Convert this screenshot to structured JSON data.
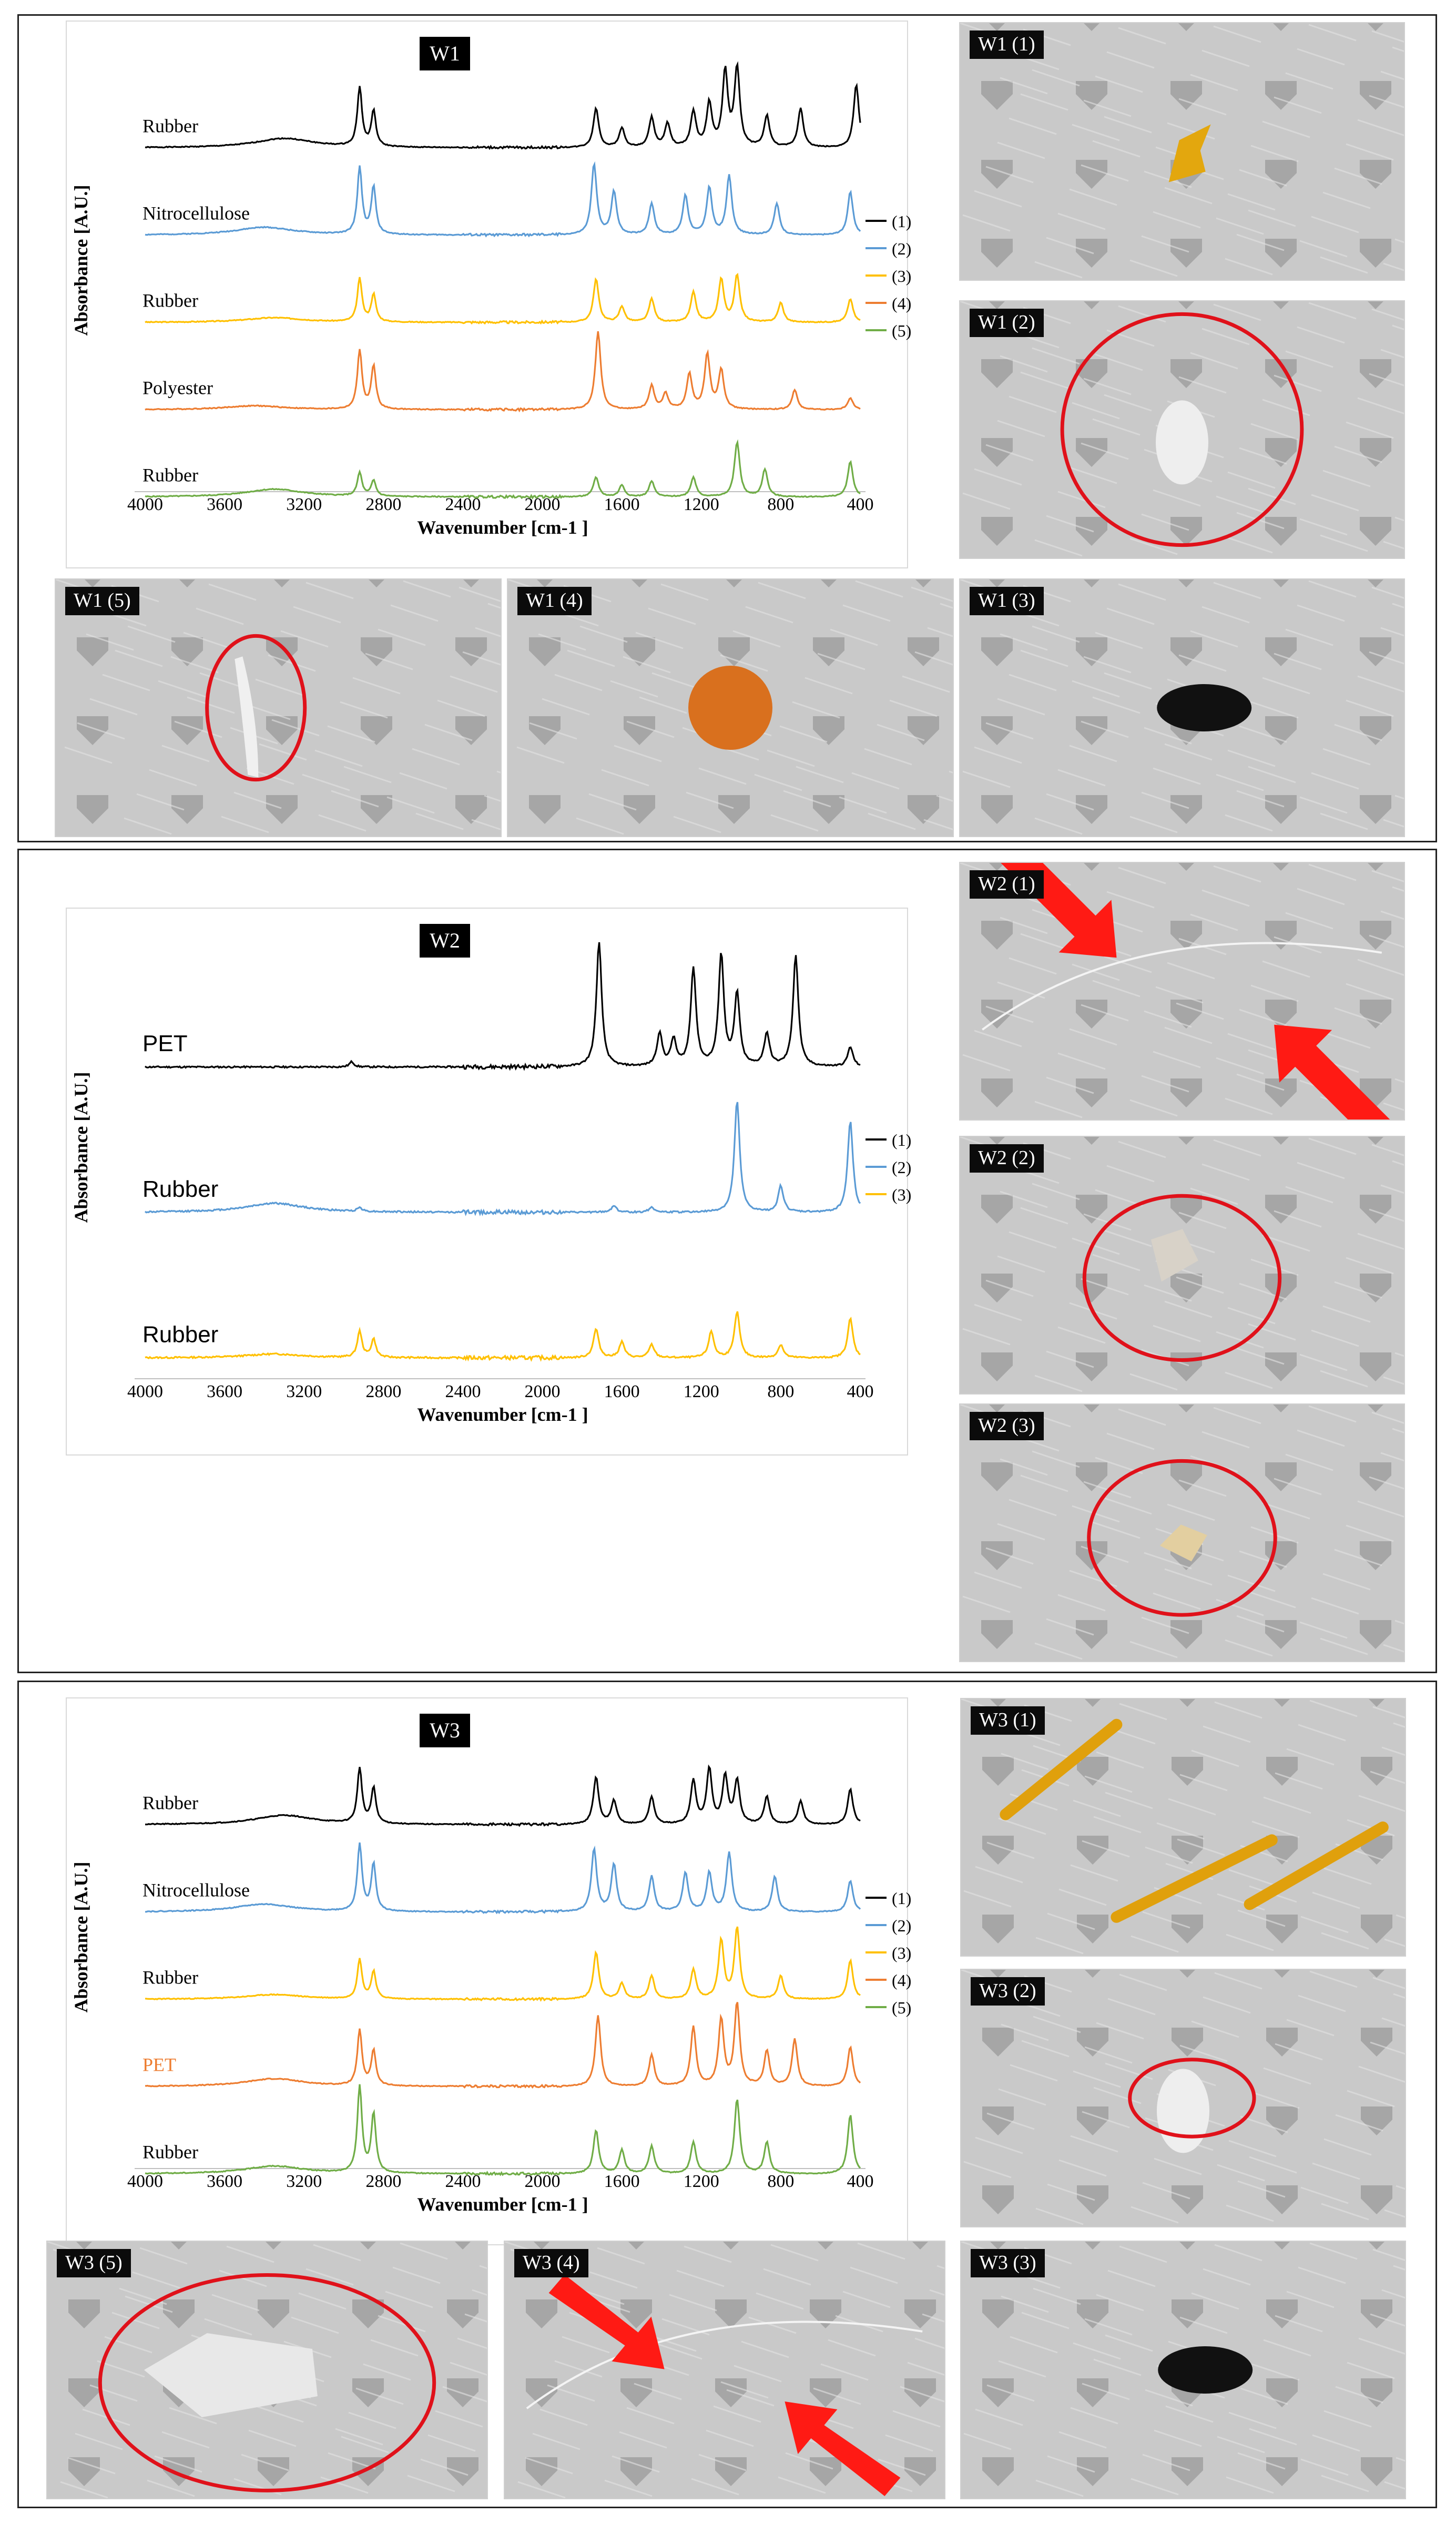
{
  "colors": {
    "s1": "#000000",
    "s2": "#5b9bd5",
    "s3": "#ffc000",
    "s4": "#ed7d31",
    "s5": "#70ad47",
    "annotation_circle": "#e0111a",
    "arrow": "#ff1a14"
  },
  "axis_common": {
    "xlabel": "Wavenumber [cm-1 ]",
    "ylabel": "Absorbance [A.U.]",
    "x_ticks": [
      "4000",
      "3600",
      "3200",
      "2800",
      "2400",
      "2000",
      "1600",
      "1200",
      "800",
      "400"
    ]
  },
  "chart_data": [
    {
      "type": "line",
      "title": "W1",
      "xlabel": "Wavenumber [cm-1 ]",
      "ylabel": "Absorbance [A.U.]",
      "xlim": [
        4000,
        400
      ],
      "x_reversed": true,
      "grid": false,
      "legend_position": "right",
      "series": [
        {
          "name": "(1)",
          "label": "Rubber",
          "color": "#000000",
          "peaks": [
            [
              3300,
              0.12
            ],
            [
              2920,
              0.75
            ],
            [
              2850,
              0.45
            ],
            [
              1730,
              0.5
            ],
            [
              1600,
              0.25
            ],
            [
              1450,
              0.38
            ],
            [
              1370,
              0.3
            ],
            [
              1240,
              0.45
            ],
            [
              1160,
              0.55
            ],
            [
              1080,
              0.95
            ],
            [
              1020,
              1.0
            ],
            [
              870,
              0.4
            ],
            [
              700,
              0.5
            ],
            [
              420,
              0.8
            ]
          ]
        },
        {
          "name": "(2)",
          "label": "Nitrocellulose",
          "color": "#5b9bd5",
          "peaks": [
            [
              3400,
              0.1
            ],
            [
              2920,
              0.85
            ],
            [
              2850,
              0.6
            ],
            [
              1740,
              0.9
            ],
            [
              1640,
              0.55
            ],
            [
              1450,
              0.4
            ],
            [
              1280,
              0.5
            ],
            [
              1160,
              0.6
            ],
            [
              1060,
              0.75
            ],
            [
              820,
              0.4
            ],
            [
              450,
              0.55
            ]
          ]
        },
        {
          "name": "(3)",
          "label": "Rubber",
          "color": "#ffc000",
          "peaks": [
            [
              3350,
              0.06
            ],
            [
              2920,
              0.55
            ],
            [
              2850,
              0.35
            ],
            [
              1730,
              0.55
            ],
            [
              1600,
              0.2
            ],
            [
              1450,
              0.3
            ],
            [
              1240,
              0.38
            ],
            [
              1100,
              0.55
            ],
            [
              1020,
              0.6
            ],
            [
              800,
              0.25
            ],
            [
              450,
              0.3
            ]
          ]
        },
        {
          "name": "(4)",
          "label": "Polyester",
          "color": "#ed7d31",
          "peaks": [
            [
              3450,
              0.05
            ],
            [
              2920,
              0.75
            ],
            [
              2850,
              0.55
            ],
            [
              1720,
              1.0
            ],
            [
              1450,
              0.3
            ],
            [
              1380,
              0.2
            ],
            [
              1260,
              0.45
            ],
            [
              1170,
              0.7
            ],
            [
              1100,
              0.5
            ],
            [
              730,
              0.25
            ],
            [
              450,
              0.15
            ]
          ]
        },
        {
          "name": "(5)",
          "label": "Rubber",
          "color": "#70ad47",
          "peaks": [
            [
              3350,
              0.1
            ],
            [
              2920,
              0.3
            ],
            [
              2850,
              0.2
            ],
            [
              1730,
              0.25
            ],
            [
              1600,
              0.15
            ],
            [
              1450,
              0.2
            ],
            [
              1240,
              0.25
            ],
            [
              1020,
              0.7
            ],
            [
              880,
              0.35
            ],
            [
              450,
              0.45
            ]
          ]
        }
      ]
    },
    {
      "type": "line",
      "title": "W2",
      "xlabel": "Wavenumber [cm-1 ]",
      "ylabel": "Absorbance [A.U.]",
      "xlim": [
        4000,
        400
      ],
      "x_reversed": true,
      "grid": false,
      "legend_position": "right",
      "series": [
        {
          "name": "(1)",
          "label": "PET",
          "color": "#000000",
          "peaks": [
            [
              2960,
              0.04
            ],
            [
              1715,
              0.95
            ],
            [
              1410,
              0.25
            ],
            [
              1340,
              0.2
            ],
            [
              1240,
              0.75
            ],
            [
              1100,
              0.85
            ],
            [
              1020,
              0.55
            ],
            [
              870,
              0.25
            ],
            [
              725,
              0.85
            ],
            [
              450,
              0.15
            ]
          ]
        },
        {
          "name": "(2)",
          "label": "Rubber",
          "color": "#5b9bd5",
          "peaks": [
            [
              3350,
              0.07
            ],
            [
              2920,
              0.03
            ],
            [
              1640,
              0.05
            ],
            [
              1450,
              0.04
            ],
            [
              1020,
              0.85
            ],
            [
              800,
              0.2
            ],
            [
              450,
              0.7
            ]
          ]
        },
        {
          "name": "(3)",
          "label": "Rubber",
          "color": "#ffc000",
          "peaks": [
            [
              3350,
              0.03
            ],
            [
              2920,
              0.2
            ],
            [
              2850,
              0.14
            ],
            [
              1730,
              0.22
            ],
            [
              1600,
              0.12
            ],
            [
              1450,
              0.1
            ],
            [
              1150,
              0.2
            ],
            [
              1020,
              0.35
            ],
            [
              800,
              0.1
            ],
            [
              450,
              0.3
            ]
          ]
        }
      ]
    },
    {
      "type": "line",
      "title": "W3",
      "xlabel": "Wavenumber [cm-1 ]",
      "ylabel": "Absorbance [A.U.]",
      "xlim": [
        4000,
        400
      ],
      "x_reversed": true,
      "grid": false,
      "legend_position": "right",
      "series": [
        {
          "name": "(1)",
          "label": "Rubber",
          "color": "#000000",
          "peaks": [
            [
              3300,
              0.12
            ],
            [
              2920,
              0.7
            ],
            [
              2850,
              0.45
            ],
            [
              1730,
              0.6
            ],
            [
              1640,
              0.3
            ],
            [
              1450,
              0.35
            ],
            [
              1240,
              0.55
            ],
            [
              1160,
              0.7
            ],
            [
              1080,
              0.6
            ],
            [
              1020,
              0.55
            ],
            [
              870,
              0.35
            ],
            [
              700,
              0.3
            ],
            [
              450,
              0.45
            ]
          ]
        },
        {
          "name": "(2)",
          "label": "Nitrocellulose",
          "color": "#5b9bd5",
          "peaks": [
            [
              3400,
              0.1
            ],
            [
              2920,
              0.85
            ],
            [
              2850,
              0.6
            ],
            [
              1740,
              0.8
            ],
            [
              1640,
              0.6
            ],
            [
              1450,
              0.45
            ],
            [
              1280,
              0.5
            ],
            [
              1160,
              0.5
            ],
            [
              1060,
              0.75
            ],
            [
              830,
              0.45
            ],
            [
              450,
              0.4
            ]
          ]
        },
        {
          "name": "(3)",
          "label": "Rubber",
          "color": "#ffc000",
          "peaks": [
            [
              3350,
              0.06
            ],
            [
              2920,
              0.5
            ],
            [
              2850,
              0.35
            ],
            [
              1730,
              0.6
            ],
            [
              1600,
              0.2
            ],
            [
              1450,
              0.3
            ],
            [
              1240,
              0.38
            ],
            [
              1100,
              0.75
            ],
            [
              1020,
              0.9
            ],
            [
              800,
              0.3
            ],
            [
              450,
              0.5
            ]
          ]
        },
        {
          "name": "(4)",
          "label": "PET",
          "color": "#ed7d31",
          "peaks": [
            [
              3350,
              0.1
            ],
            [
              2920,
              0.7
            ],
            [
              2850,
              0.45
            ],
            [
              1720,
              0.9
            ],
            [
              1450,
              0.4
            ],
            [
              1240,
              0.75
            ],
            [
              1100,
              0.85
            ],
            [
              1020,
              1.05
            ],
            [
              870,
              0.45
            ],
            [
              730,
              0.6
            ],
            [
              450,
              0.5
            ]
          ]
        },
        {
          "name": "(5)",
          "label": "Rubber",
          "color": "#70ad47",
          "peaks": [
            [
              3350,
              0.1
            ],
            [
              2920,
              1.1
            ],
            [
              2850,
              0.75
            ],
            [
              1730,
              0.55
            ],
            [
              1600,
              0.3
            ],
            [
              1450,
              0.35
            ],
            [
              1240,
              0.4
            ],
            [
              1020,
              0.95
            ],
            [
              870,
              0.4
            ],
            [
              450,
              0.75
            ]
          ]
        }
      ]
    }
  ],
  "photos": {
    "w1_1": {
      "label": "W1 (1)",
      "object": "yellow-fragment",
      "circled": false
    },
    "w1_2": {
      "label": "W1 (2)",
      "object": "white-fragment",
      "circled": true
    },
    "w1_3": {
      "label": "W1 (3)",
      "object": "black-fragment",
      "circled": false
    },
    "w1_4": {
      "label": "W1 (4)",
      "object": "orange-fragment",
      "circled": false
    },
    "w1_5": {
      "label": "W1 (5)",
      "object": "white-sliver",
      "circled": true
    },
    "w2_1": {
      "label": "W2 (1)",
      "object": "fiber",
      "circled": false,
      "arrows": 2
    },
    "w2_2": {
      "label": "W2 (2)",
      "object": "grey-fragment",
      "circled": true
    },
    "w2_3": {
      "label": "W2 (3)",
      "object": "tan-fragment",
      "circled": true
    },
    "w3_1": {
      "label": "W3 (1)",
      "object": "yellow-fragments",
      "circled": false
    },
    "w3_2": {
      "label": "W3 (2)",
      "object": "white-fragment",
      "circled": true
    },
    "w3_3": {
      "label": "W3 (3)",
      "object": "black-fragment",
      "circled": false
    },
    "w3_4": {
      "label": "W3 (4)",
      "object": "fiber",
      "circled": false,
      "arrows": 2
    },
    "w3_5": {
      "label": "W3 (5)",
      "object": "white-film",
      "circled": true
    }
  }
}
